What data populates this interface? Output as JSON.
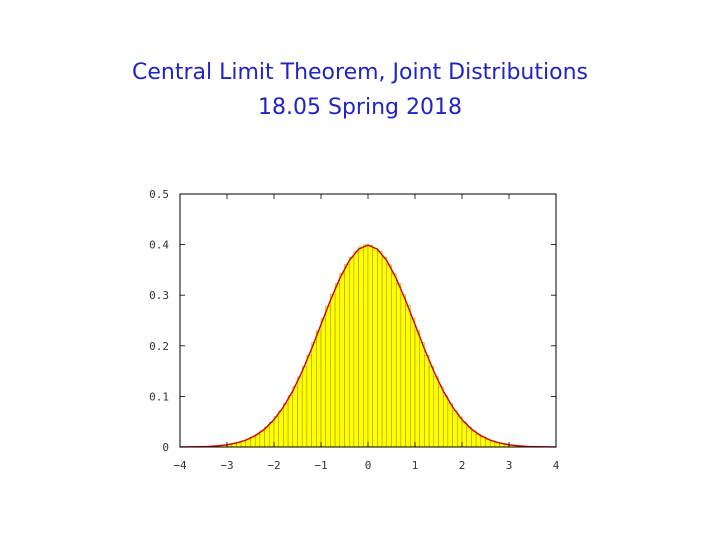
{
  "slide": {
    "title_line1": "Central Limit Theorem, Joint Distributions",
    "title_line2": "18.05 Spring 2018"
  },
  "colors": {
    "title": "#1f24c8",
    "bar_fill": "#ffff00",
    "bar_edge": "#a08a00",
    "curve": "#d40000"
  },
  "chart_data": {
    "type": "bar",
    "xlim": [
      -4,
      4
    ],
    "ylim": [
      0,
      0.5
    ],
    "x_tick_values": [
      -4,
      -3,
      -2,
      -1,
      0,
      1,
      2,
      3,
      4
    ],
    "x_tick_labels": [
      "−4",
      "−3",
      "−2",
      "−1",
      "0",
      "1",
      "2",
      "3",
      "4"
    ],
    "y_tick_values": [
      0,
      0.1,
      0.2,
      0.3,
      0.4,
      0.5
    ],
    "y_tick_labels": [
      "0",
      "0.1",
      "0.2",
      "0.3",
      "0.4",
      "0.5"
    ],
    "bin_width": 0.1,
    "bin_centers": [
      -3.95,
      -3.85,
      -3.75,
      -3.65,
      -3.55,
      -3.45,
      -3.35,
      -3.25,
      -3.15,
      -3.05,
      -2.95,
      -2.85,
      -2.75,
      -2.65,
      -2.55,
      -2.45,
      -2.35,
      -2.25,
      -2.15,
      -2.05,
      -1.95,
      -1.85,
      -1.75,
      -1.65,
      -1.55,
      -1.45,
      -1.35,
      -1.25,
      -1.15,
      -1.05,
      -0.95,
      -0.85,
      -0.75,
      -0.65,
      -0.55,
      -0.45,
      -0.35,
      -0.25,
      -0.15,
      -0.05,
      0.05,
      0.15,
      0.25,
      0.35,
      0.45,
      0.55,
      0.65,
      0.75,
      0.85,
      0.95,
      1.05,
      1.15,
      1.25,
      1.35,
      1.45,
      1.55,
      1.65,
      1.75,
      1.85,
      1.95,
      2.05,
      2.15,
      2.25,
      2.35,
      2.45,
      2.55,
      2.65,
      2.75,
      2.85,
      2.95,
      3.05,
      3.15,
      3.25,
      3.35,
      3.45,
      3.55,
      3.65,
      3.75,
      3.85,
      3.95
    ],
    "values": [
      0.0002,
      0.0002,
      0.0004,
      0.0005,
      0.0008,
      0.001,
      0.0014,
      0.002,
      0.0028,
      0.0037,
      0.0051,
      0.0069,
      0.0092,
      0.0118,
      0.0152,
      0.0199,
      0.025,
      0.0318,
      0.0395,
      0.0487,
      0.0598,
      0.0716,
      0.0857,
      0.1015,
      0.1195,
      0.1385,
      0.159,
      0.1818,
      0.206,
      0.2295,
      0.254,
      0.2786,
      0.302,
      0.323,
      0.343,
      0.3605,
      0.3748,
      0.386,
      0.3955,
      0.3993,
      0.3983,
      0.393,
      0.3865,
      0.3745,
      0.36,
      0.3425,
      0.3225,
      0.301,
      0.2795,
      0.2545,
      0.2298,
      0.2065,
      0.1815,
      0.1588,
      0.139,
      0.1192,
      0.1012,
      0.0855,
      0.072,
      0.0596,
      0.0485,
      0.0395,
      0.0318,
      0.025,
      0.0198,
      0.0153,
      0.0118,
      0.0091,
      0.0069,
      0.0051,
      0.0038,
      0.0028,
      0.002,
      0.0014,
      0.001,
      0.0007,
      0.0005,
      0.0004,
      0.0002,
      0.0002
    ],
    "overlay_curve": {
      "x": [
        -4,
        -3.8,
        -3.6,
        -3.4,
        -3.2,
        -3,
        -2.8,
        -2.6,
        -2.4,
        -2.2,
        -2,
        -1.8,
        -1.6,
        -1.4,
        -1.2,
        -1,
        -0.8,
        -0.6,
        -0.4,
        -0.2,
        0,
        0.2,
        0.4,
        0.6,
        0.8,
        1,
        1.2,
        1.4,
        1.6,
        1.8,
        2,
        2.2,
        2.4,
        2.6,
        2.8,
        3,
        3.2,
        3.4,
        3.6,
        3.8,
        4
      ],
      "y": [
        0.0001,
        0.0003,
        0.0006,
        0.0012,
        0.0024,
        0.0044,
        0.0079,
        0.0136,
        0.0224,
        0.0355,
        0.054,
        0.079,
        0.1109,
        0.1497,
        0.1942,
        0.242,
        0.2897,
        0.3332,
        0.3683,
        0.391,
        0.3989,
        0.391,
        0.3683,
        0.3332,
        0.2897,
        0.242,
        0.1942,
        0.1497,
        0.1109,
        0.079,
        0.054,
        0.0355,
        0.0224,
        0.0136,
        0.0079,
        0.0044,
        0.0024,
        0.0012,
        0.0006,
        0.0003,
        0.0001
      ]
    }
  }
}
